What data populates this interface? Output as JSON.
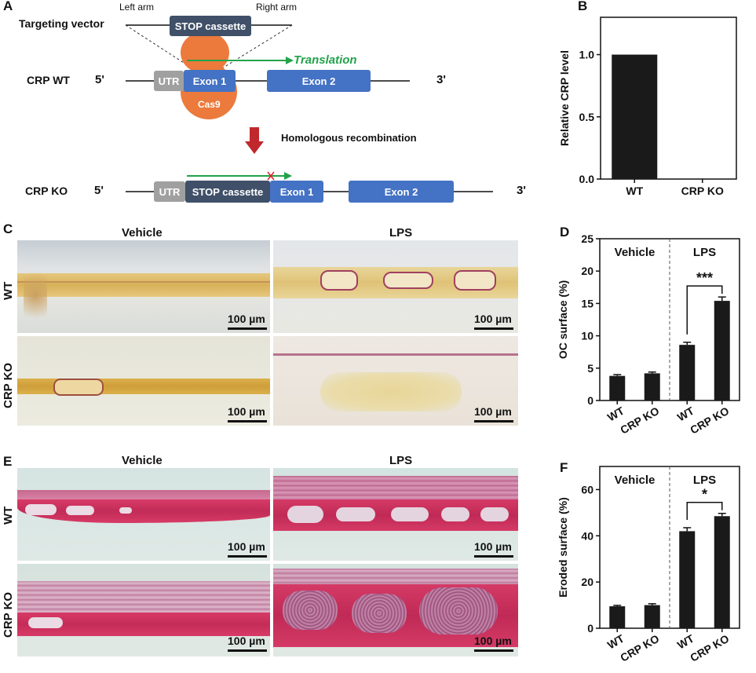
{
  "panel_labels": {
    "a": "A",
    "b": "B",
    "c": "C",
    "d": "D",
    "e": "E",
    "f": "F"
  },
  "schematic": {
    "left_arm": "Left arm",
    "right_arm": "Right arm",
    "targeting_vector": "Targeting vector",
    "stop_cassette": "STOP cassette",
    "translation": "Translation",
    "crp_wt": "CRP WT",
    "crp_ko": "CRP KO",
    "five_prime": "5'",
    "three_prime": "3'",
    "utr": "UTR",
    "exon1": "Exon 1",
    "exon2": "Exon 2",
    "cas9": "Cas9",
    "homologous": "Homologous recombination",
    "colors": {
      "box_dark": "#3f5068",
      "exon": "#4472c4",
      "utr": "#a0a0a0",
      "cas9": "#ec7a3c",
      "arrow_green": "#22a34a",
      "arrow_red": "#c0282d"
    }
  },
  "micro": {
    "vehicle": "Vehicle",
    "lps": "LPS",
    "wt": "WT",
    "crp_ko": "CRP KO",
    "scale": "100 µm"
  },
  "chart_data": [
    {
      "id": "B",
      "type": "bar",
      "categories": [
        "WT",
        "CRP KO"
      ],
      "values": [
        1.0,
        0.0
      ],
      "ylabel": "Relative CRP level",
      "ylim": [
        0,
        1.3
      ],
      "yticks": [
        "0.0",
        "0.5",
        "1.0"
      ],
      "ytick_values": [
        0,
        0.5,
        1.0
      ]
    },
    {
      "id": "D",
      "type": "bar",
      "categories": [
        "WT",
        "CRP KO",
        "WT",
        "CRP KO"
      ],
      "values": [
        3.8,
        4.2,
        8.6,
        15.4
      ],
      "errors": [
        0.2,
        0.2,
        0.4,
        0.6
      ],
      "ylabel": "OC surface (%)",
      "ylim": [
        0,
        25
      ],
      "yticks": [
        "0",
        "5",
        "10",
        "15",
        "20",
        "25"
      ],
      "ytick_values": [
        0,
        5,
        10,
        15,
        20,
        25
      ],
      "groups": [
        "Vehicle",
        "LPS"
      ],
      "significance": "***"
    },
    {
      "id": "F",
      "type": "bar",
      "categories": [
        "WT",
        "CRP KO",
        "WT",
        "CRP KO"
      ],
      "values": [
        9.5,
        10.0,
        42.0,
        48.5
      ],
      "errors": [
        0.4,
        0.6,
        1.5,
        1.2
      ],
      "ylabel": "Eroded surface (%)",
      "ylim": [
        0,
        70
      ],
      "yticks": [
        "0",
        "20",
        "40",
        "60"
      ],
      "ytick_values": [
        0,
        20,
        40,
        60
      ],
      "groups": [
        "Vehicle",
        "LPS"
      ],
      "significance": "*"
    }
  ]
}
